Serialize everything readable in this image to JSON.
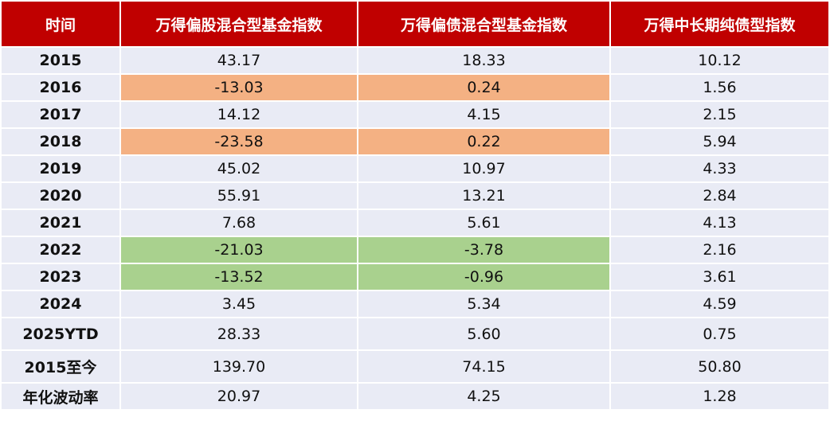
{
  "table": {
    "header": [
      "时间",
      "万得偏股混合型基金指数",
      "万得偏债混合型基金指数",
      "万得中长期纯债型指数"
    ],
    "rows": [
      [
        "2015",
        "43.17",
        "18.33",
        "10.12"
      ],
      [
        "2016",
        "-13.03",
        "0.24",
        "1.56"
      ],
      [
        "2017",
        "14.12",
        "4.15",
        "2.15"
      ],
      [
        "2018",
        "-23.58",
        "0.22",
        "5.94"
      ],
      [
        "2019",
        "45.02",
        "10.97",
        "4.33"
      ],
      [
        "2020",
        "55.91",
        "13.21",
        "2.84"
      ],
      [
        "2021",
        "7.68",
        "5.61",
        "4.13"
      ],
      [
        "2022",
        "-21.03",
        "-3.78",
        "2.16"
      ],
      [
        "2023",
        "-13.52",
        "-0.96",
        "3.61"
      ],
      [
        "2024",
        "3.45",
        "5.34",
        "4.59"
      ],
      [
        "2025YTD",
        "28.33",
        "5.60",
        "0.75"
      ],
      [
        "2015至今",
        "139.70",
        "74.15",
        "50.80"
      ],
      [
        "年化波动率",
        "20.97",
        "4.25",
        "1.28"
      ]
    ]
  }
}
